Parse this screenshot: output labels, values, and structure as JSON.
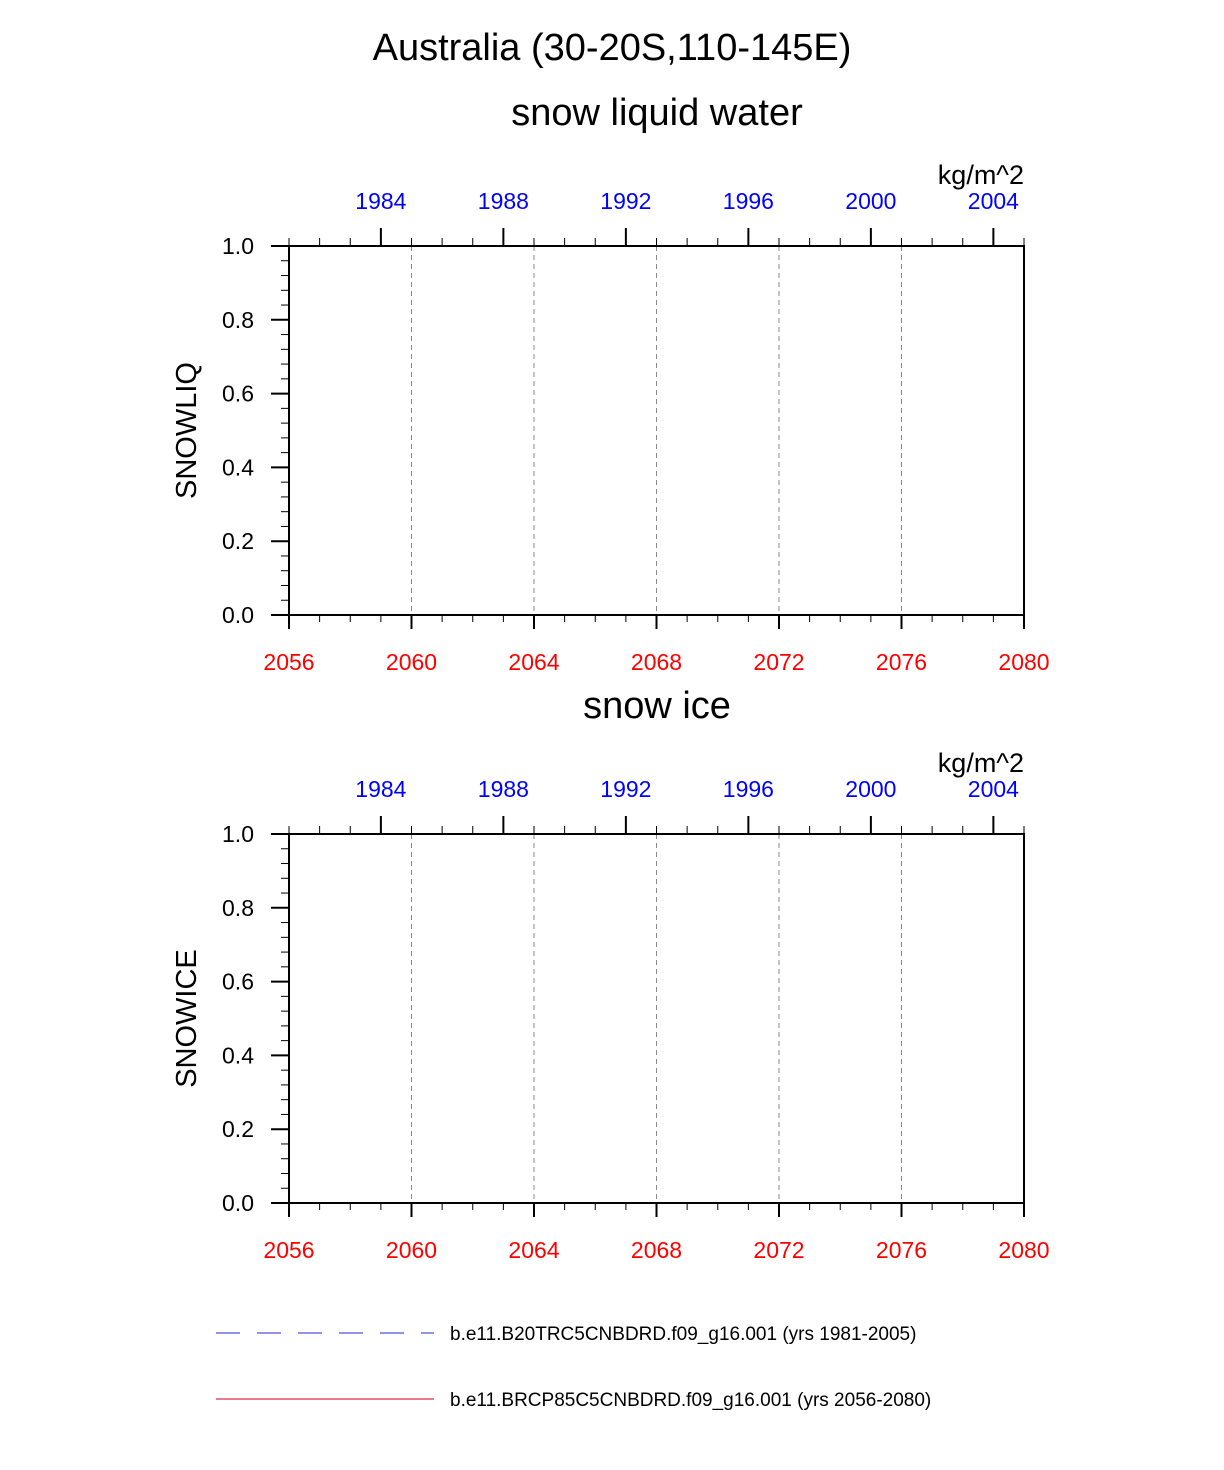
{
  "figure": {
    "title": "Australia (30-20S,110-145E)"
  },
  "colors": {
    "top_axis": "#0000ff",
    "bottom_axis": "#ff0000",
    "frame": "#000000",
    "grid": "#888888",
    "legend_hist": "#6f6fe0",
    "legend_future": "#e0506a"
  },
  "chart_data": [
    {
      "type": "line",
      "title": "snow liquid water",
      "ylabel": "SNOWLIQ",
      "units": "kg/m^2",
      "ylim": [
        0.0,
        1.0
      ],
      "yticks": [
        "0.0",
        "0.2",
        "0.4",
        "0.6",
        "0.8",
        "1.0"
      ],
      "x_bottom": {
        "range": [
          2056,
          2080
        ],
        "ticks": [
          2056,
          2060,
          2064,
          2068,
          2072,
          2076,
          2080
        ],
        "color": "red"
      },
      "x_top": {
        "range": [
          1981,
          2005
        ],
        "ticks": [
          1984,
          1988,
          1992,
          1996,
          2000,
          2004
        ],
        "color": "blue"
      },
      "grid": "vertical dashed at major ticks",
      "series": [
        {
          "name": "b.e11.B20TRC5CNBDRD.f09_g16.001 (yrs 1981-2005)",
          "values": []
        },
        {
          "name": "b.e11.BRCP85C5CNBDRD.f09_g16.001 (yrs 2056-2080)",
          "values": []
        }
      ]
    },
    {
      "type": "line",
      "title": "snow ice",
      "ylabel": "SNOWICE",
      "units": "kg/m^2",
      "ylim": [
        0.0,
        1.0
      ],
      "yticks": [
        "0.0",
        "0.2",
        "0.4",
        "0.6",
        "0.8",
        "1.0"
      ],
      "x_bottom": {
        "range": [
          2056,
          2080
        ],
        "ticks": [
          2056,
          2060,
          2064,
          2068,
          2072,
          2076,
          2080
        ],
        "color": "red"
      },
      "x_top": {
        "range": [
          1981,
          2005
        ],
        "ticks": [
          1984,
          1988,
          1992,
          1996,
          2000,
          2004
        ],
        "color": "blue"
      },
      "grid": "vertical dashed at major ticks",
      "series": [
        {
          "name": "b.e11.B20TRC5CNBDRD.f09_g16.001 (yrs 1981-2005)",
          "values": []
        },
        {
          "name": "b.e11.BRCP85C5CNBDRD.f09_g16.001 (yrs 2056-2080)",
          "values": []
        }
      ]
    }
  ],
  "legend": {
    "items": [
      {
        "label": "b.e11.B20TRC5CNBDRD.f09_g16.001 (yrs 1981-2005)",
        "style": "dashed",
        "color_key": "legend_hist"
      },
      {
        "label": "b.e11.BRCP85C5CNBDRD.f09_g16.001 (yrs 2056-2080)",
        "style": "solid",
        "color_key": "legend_future"
      }
    ]
  }
}
